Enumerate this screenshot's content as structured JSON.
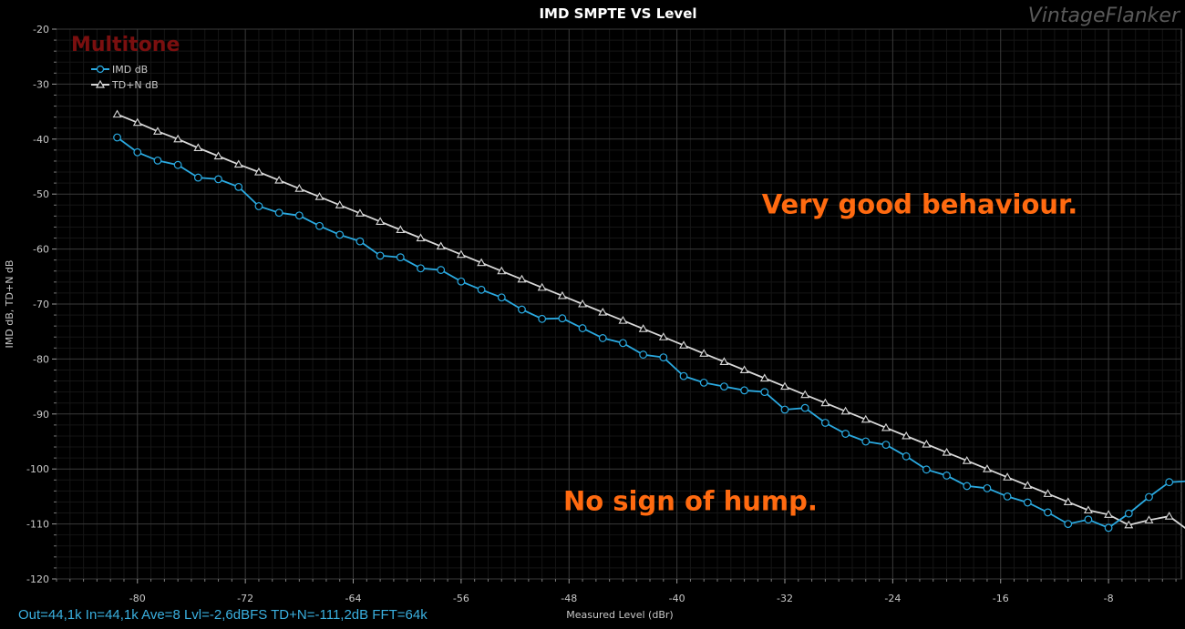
{
  "chart_data": {
    "type": "line",
    "title": "IMD SMPTE VS Level",
    "watermark": "VintageFlanker",
    "software_label": "Multitone",
    "xlabel": "Measured Level (dBr)",
    "ylabel": "IMD dB, TD+N dB",
    "xlim": [
      -86,
      -2.6
    ],
    "ylim": [
      -120,
      -20
    ],
    "x_ticks": [
      -80,
      -72,
      -64,
      -56,
      -48,
      -40,
      -32,
      -24,
      -16,
      -8
    ],
    "x_tick_labels": [
      "-80",
      "-72",
      "-64",
      "-56",
      "-48",
      "-40",
      "-32",
      "-24",
      "-16",
      "-8"
    ],
    "y_ticks": [
      -20,
      -30,
      -40,
      -50,
      -60,
      -70,
      -80,
      -90,
      -100,
      -110,
      -120
    ],
    "y_tick_labels": [
      "-20",
      "-30",
      "-40",
      "-50",
      "-60",
      "-70",
      "-80",
      "-90",
      "-100",
      "-110",
      "-120"
    ],
    "grid": true,
    "legend_position": "top-left",
    "series": [
      {
        "name": "IMD dB",
        "color": "#2aa9e0",
        "marker": "circle",
        "x": [
          -81.5,
          -80.0,
          -78.5,
          -77.0,
          -75.5,
          -74.0,
          -72.5,
          -71.0,
          -69.5,
          -68.0,
          -66.5,
          -65.0,
          -63.5,
          -62.0,
          -60.5,
          -59.0,
          -57.5,
          -56.0,
          -54.5,
          -53.0,
          -51.5,
          -50.0,
          -48.5,
          -47.0,
          -45.5,
          -44.0,
          -42.5,
          -41.0,
          -39.5,
          -38.0,
          -36.5,
          -35.0,
          -33.5,
          -32.0,
          -30.5,
          -29.0,
          -27.5,
          -26.0,
          -24.5,
          -23.0,
          -21.5,
          -20.0,
          -18.5,
          -17.0,
          -15.5,
          -14.0,
          -12.5,
          -11.0,
          -9.5,
          -8.0,
          -6.5,
          -5.0,
          -3.5,
          -2.0
        ],
        "y": [
          -39.7,
          -42.4,
          -43.9,
          -44.7,
          -47.0,
          -47.3,
          -48.7,
          -52.2,
          -53.4,
          -53.9,
          -55.8,
          -57.4,
          -58.6,
          -61.2,
          -61.5,
          -63.5,
          -63.8,
          -65.9,
          -67.4,
          -68.8,
          -71.0,
          -72.7,
          -72.6,
          -74.4,
          -76.2,
          -77.1,
          -79.2,
          -79.7,
          -83.1,
          -84.3,
          -85.0,
          -85.7,
          -86.0,
          -89.2,
          -88.9,
          -91.6,
          -93.6,
          -95.0,
          -95.6,
          -97.7,
          -100.1,
          -101.2,
          -103.1,
          -103.5,
          -105.0,
          -106.1,
          -107.9,
          -110.0,
          -109.2,
          -110.7,
          -108.1,
          -105.1,
          -102.4,
          -102.2
        ]
      },
      {
        "name": "TD+N dB",
        "color": "#d8d8d8",
        "marker": "triangle",
        "x": [
          -81.5,
          -80.0,
          -78.5,
          -77.0,
          -75.5,
          -74.0,
          -72.5,
          -71.0,
          -69.5,
          -68.0,
          -66.5,
          -65.0,
          -63.5,
          -62.0,
          -60.5,
          -59.0,
          -57.5,
          -56.0,
          -54.5,
          -53.0,
          -51.5,
          -50.0,
          -48.5,
          -47.0,
          -45.5,
          -44.0,
          -42.5,
          -41.0,
          -39.5,
          -38.0,
          -36.5,
          -35.0,
          -33.5,
          -32.0,
          -30.5,
          -29.0,
          -27.5,
          -26.0,
          -24.5,
          -23.0,
          -21.5,
          -20.0,
          -18.5,
          -17.0,
          -15.5,
          -14.0,
          -12.5,
          -11.0,
          -9.5,
          -8.0,
          -6.5,
          -5.0,
          -3.5,
          -2.0
        ],
        "y": [
          -35.5,
          -37.0,
          -38.6,
          -40.0,
          -41.6,
          -43.1,
          -44.6,
          -46.0,
          -47.5,
          -49.0,
          -50.5,
          -52.0,
          -53.5,
          -55.0,
          -56.5,
          -58.0,
          -59.5,
          -61.0,
          -62.5,
          -64.0,
          -65.5,
          -67.0,
          -68.5,
          -70.0,
          -71.5,
          -73.0,
          -74.5,
          -76.0,
          -77.5,
          -79.0,
          -80.5,
          -82.0,
          -83.5,
          -85.0,
          -86.5,
          -88.0,
          -89.5,
          -91.0,
          -92.5,
          -94.0,
          -95.5,
          -97.0,
          -98.5,
          -100.0,
          -101.5,
          -103.0,
          -104.5,
          -106.0,
          -107.5,
          -108.3,
          -110.2,
          -109.3,
          -108.6,
          -111.3
        ]
      }
    ],
    "annotations": [
      {
        "text": "Very good behaviour.",
        "x": -22.0,
        "y": -53.5
      },
      {
        "text": "No sign of hump.",
        "x": -39.0,
        "y": -107.5
      }
    ]
  },
  "footer": "Out=44,1k In=44,1k Ave=8 Lvl=-2,6dBFS TD+N=-111,2dB FFT=64k"
}
